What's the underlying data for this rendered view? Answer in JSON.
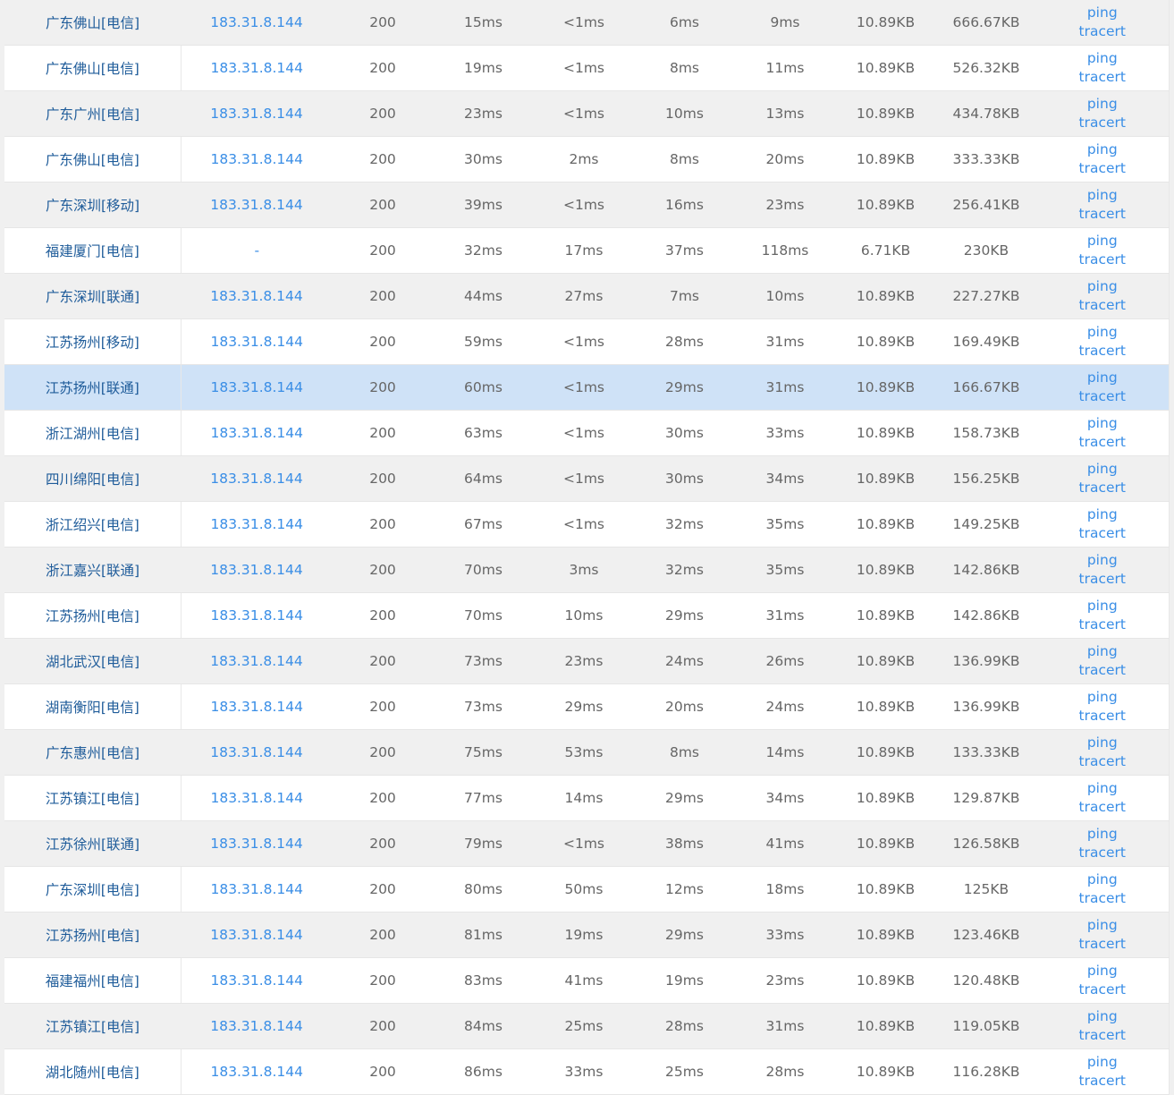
{
  "colors": {
    "location": "#1f5c9a",
    "ip": "#3a8ee6",
    "text": "#666666",
    "row_alt": "#f0f0f0",
    "highlight": "#cfe2f7"
  },
  "actions": {
    "ping": "ping",
    "tracert": "tracert"
  },
  "highlighted_row": 8,
  "rows": [
    [
      "广东佛山[电信]",
      "183.31.8.144",
      "200",
      "15ms",
      "<1ms",
      "6ms",
      "9ms",
      "10.89KB",
      "666.67KB"
    ],
    [
      "广东佛山[电信]",
      "183.31.8.144",
      "200",
      "19ms",
      "<1ms",
      "8ms",
      "11ms",
      "10.89KB",
      "526.32KB"
    ],
    [
      "广东广州[电信]",
      "183.31.8.144",
      "200",
      "23ms",
      "<1ms",
      "10ms",
      "13ms",
      "10.89KB",
      "434.78KB"
    ],
    [
      "广东佛山[电信]",
      "183.31.8.144",
      "200",
      "30ms",
      "2ms",
      "8ms",
      "20ms",
      "10.89KB",
      "333.33KB"
    ],
    [
      "广东深圳[移动]",
      "183.31.8.144",
      "200",
      "39ms",
      "<1ms",
      "16ms",
      "23ms",
      "10.89KB",
      "256.41KB"
    ],
    [
      "福建厦门[电信]",
      "-",
      "200",
      "32ms",
      "17ms",
      "37ms",
      "118ms",
      "6.71KB",
      "230KB"
    ],
    [
      "广东深圳[联通]",
      "183.31.8.144",
      "200",
      "44ms",
      "27ms",
      "7ms",
      "10ms",
      "10.89KB",
      "227.27KB"
    ],
    [
      "江苏扬州[移动]",
      "183.31.8.144",
      "200",
      "59ms",
      "<1ms",
      "28ms",
      "31ms",
      "10.89KB",
      "169.49KB"
    ],
    [
      "江苏扬州[联通]",
      "183.31.8.144",
      "200",
      "60ms",
      "<1ms",
      "29ms",
      "31ms",
      "10.89KB",
      "166.67KB"
    ],
    [
      "浙江湖州[电信]",
      "183.31.8.144",
      "200",
      "63ms",
      "<1ms",
      "30ms",
      "33ms",
      "10.89KB",
      "158.73KB"
    ],
    [
      "四川绵阳[电信]",
      "183.31.8.144",
      "200",
      "64ms",
      "<1ms",
      "30ms",
      "34ms",
      "10.89KB",
      "156.25KB"
    ],
    [
      "浙江绍兴[电信]",
      "183.31.8.144",
      "200",
      "67ms",
      "<1ms",
      "32ms",
      "35ms",
      "10.89KB",
      "149.25KB"
    ],
    [
      "浙江嘉兴[联通]",
      "183.31.8.144",
      "200",
      "70ms",
      "3ms",
      "32ms",
      "35ms",
      "10.89KB",
      "142.86KB"
    ],
    [
      "江苏扬州[电信]",
      "183.31.8.144",
      "200",
      "70ms",
      "10ms",
      "29ms",
      "31ms",
      "10.89KB",
      "142.86KB"
    ],
    [
      "湖北武汉[电信]",
      "183.31.8.144",
      "200",
      "73ms",
      "23ms",
      "24ms",
      "26ms",
      "10.89KB",
      "136.99KB"
    ],
    [
      "湖南衡阳[电信]",
      "183.31.8.144",
      "200",
      "73ms",
      "29ms",
      "20ms",
      "24ms",
      "10.89KB",
      "136.99KB"
    ],
    [
      "广东惠州[电信]",
      "183.31.8.144",
      "200",
      "75ms",
      "53ms",
      "8ms",
      "14ms",
      "10.89KB",
      "133.33KB"
    ],
    [
      "江苏镇江[电信]",
      "183.31.8.144",
      "200",
      "77ms",
      "14ms",
      "29ms",
      "34ms",
      "10.89KB",
      "129.87KB"
    ],
    [
      "江苏徐州[联通]",
      "183.31.8.144",
      "200",
      "79ms",
      "<1ms",
      "38ms",
      "41ms",
      "10.89KB",
      "126.58KB"
    ],
    [
      "广东深圳[电信]",
      "183.31.8.144",
      "200",
      "80ms",
      "50ms",
      "12ms",
      "18ms",
      "10.89KB",
      "125KB"
    ],
    [
      "江苏扬州[电信]",
      "183.31.8.144",
      "200",
      "81ms",
      "19ms",
      "29ms",
      "33ms",
      "10.89KB",
      "123.46KB"
    ],
    [
      "福建福州[电信]",
      "183.31.8.144",
      "200",
      "83ms",
      "41ms",
      "19ms",
      "23ms",
      "10.89KB",
      "120.48KB"
    ],
    [
      "江苏镇江[电信]",
      "183.31.8.144",
      "200",
      "84ms",
      "25ms",
      "28ms",
      "31ms",
      "10.89KB",
      "119.05KB"
    ],
    [
      "湖北随州[电信]",
      "183.31.8.144",
      "200",
      "86ms",
      "33ms",
      "25ms",
      "28ms",
      "10.89KB",
      "116.28KB"
    ]
  ]
}
